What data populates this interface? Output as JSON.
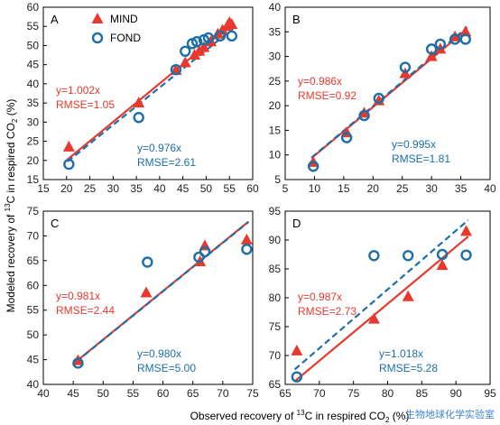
{
  "colors": {
    "mind": "#e8392f",
    "fond": "#1d6fa8"
  },
  "axes": {
    "xlabel_prefix": "Observed recovery of ",
    "xlabel_sup": "13",
    "xlabel_mid": "C in respired CO",
    "xlabel_sub": "2",
    "xlabel_suffix": " (%)",
    "ylabel_prefix": "Modeled recovery of ",
    "ylabel_sup": "13",
    "ylabel_mid": "C in respired CO",
    "ylabel_sub": "2",
    "ylabel_suffix": " (%)"
  },
  "legend": {
    "mind": "MIND",
    "fond": "FOND"
  },
  "watermark": "生物地球化学实验室",
  "chart_data": [
    {
      "type": "scatter",
      "panel": "A",
      "xlim": [
        15,
        60
      ],
      "ylim": [
        15,
        60
      ],
      "xticks": [
        15,
        20,
        25,
        30,
        35,
        40,
        45,
        50,
        55,
        60
      ],
      "yticks": [
        15,
        20,
        25,
        30,
        35,
        40,
        45,
        50,
        55,
        60
      ],
      "series": [
        {
          "name": "MIND",
          "marker": "triangle",
          "slope": 1.002,
          "stats": [
            "y=1.002x",
            "RMSE=1.05"
          ],
          "points": [
            [
              20.5,
              23.5
            ],
            [
              35.5,
              35.0
            ],
            [
              43.5,
              43.5
            ],
            [
              45.5,
              45.5
            ],
            [
              47.5,
              47.5
            ],
            [
              48.5,
              48.5
            ],
            [
              49.5,
              49.5
            ],
            [
              51.0,
              51.0
            ],
            [
              52.5,
              53.0
            ],
            [
              53.5,
              54.0
            ],
            [
              54.5,
              55.0
            ],
            [
              55.0,
              56.0
            ],
            [
              55.5,
              55.5
            ]
          ]
        },
        {
          "name": "FOND",
          "marker": "circle",
          "slope": 0.976,
          "stats": [
            "y=0.976x",
            "RMSE=2.61"
          ],
          "points": [
            [
              20.5,
              19.0
            ],
            [
              35.5,
              31.2
            ],
            [
              43.5,
              43.7
            ],
            [
              45.5,
              48.5
            ],
            [
              47.0,
              50.5
            ],
            [
              48.0,
              51.0
            ],
            [
              49.5,
              51.5
            ],
            [
              50.5,
              52.0
            ],
            [
              53.0,
              52.5
            ],
            [
              55.5,
              52.5
            ]
          ]
        }
      ]
    },
    {
      "type": "scatter",
      "panel": "B",
      "xlim": [
        5,
        40
      ],
      "ylim": [
        5,
        40
      ],
      "xticks": [
        5,
        10,
        15,
        20,
        25,
        30,
        35,
        40
      ],
      "yticks": [
        5,
        10,
        15,
        20,
        25,
        30,
        35,
        40
      ],
      "series": [
        {
          "name": "MIND",
          "marker": "triangle",
          "slope": 0.986,
          "stats": [
            "y=0.986x",
            "RMSE=0.92"
          ],
          "points": [
            [
              9.8,
              8.5
            ],
            [
              15.5,
              14.5
            ],
            [
              18.5,
              18.5
            ],
            [
              21.0,
              21.0
            ],
            [
              25.5,
              26.5
            ],
            [
              30.0,
              30.0
            ],
            [
              31.5,
              31.5
            ],
            [
              34.0,
              34.0
            ],
            [
              35.8,
              35.0
            ]
          ]
        },
        {
          "name": "FOND",
          "marker": "circle",
          "slope": 0.995,
          "stats": [
            "y=0.995x",
            "RMSE=1.81"
          ],
          "points": [
            [
              9.8,
              7.7
            ],
            [
              15.5,
              13.5
            ],
            [
              18.5,
              18.0
            ],
            [
              21.0,
              21.5
            ],
            [
              25.5,
              27.8
            ],
            [
              30.0,
              31.5
            ],
            [
              31.5,
              32.5
            ],
            [
              34.0,
              33.5
            ],
            [
              35.8,
              33.5
            ]
          ]
        }
      ]
    },
    {
      "type": "scatter",
      "panel": "C",
      "xlim": [
        40,
        75
      ],
      "ylim": [
        40,
        75
      ],
      "xticks": [
        40,
        45,
        50,
        55,
        60,
        65,
        70,
        75
      ],
      "yticks": [
        40,
        45,
        50,
        55,
        60,
        65,
        70,
        75
      ],
      "series": [
        {
          "name": "MIND",
          "marker": "triangle",
          "slope": 0.981,
          "stats": [
            "y=0.981x",
            "RMSE=2.44"
          ],
          "points": [
            [
              45.8,
              44.8
            ],
            [
              57.2,
              58.5
            ],
            [
              66.2,
              64.8
            ],
            [
              67.0,
              68.0
            ],
            [
              74.0,
              69.2
            ]
          ]
        },
        {
          "name": "FOND",
          "marker": "circle",
          "slope": 0.98,
          "stats": [
            "y=0.980x",
            "RMSE=5.00"
          ],
          "points": [
            [
              45.8,
              44.3
            ],
            [
              57.4,
              64.7
            ],
            [
              66.0,
              65.7
            ],
            [
              67.0,
              66.8
            ],
            [
              74.0,
              67.3
            ]
          ]
        }
      ]
    },
    {
      "type": "scatter",
      "panel": "D",
      "xlim": [
        65,
        95
      ],
      "ylim": [
        65,
        95
      ],
      "xticks": [
        65,
        70,
        75,
        80,
        85,
        90,
        95
      ],
      "yticks": [
        65,
        70,
        75,
        80,
        85,
        90,
        95
      ],
      "series": [
        {
          "name": "MIND",
          "marker": "triangle",
          "slope": 0.987,
          "stats": [
            "y=0.987x",
            "RMSE=2.73"
          ],
          "points": [
            [
              66.7,
              70.8
            ],
            [
              78.0,
              76.3
            ],
            [
              83.0,
              80.2
            ],
            [
              88.0,
              85.6
            ],
            [
              91.5,
              91.5
            ]
          ]
        },
        {
          "name": "FOND",
          "marker": "circle",
          "slope": 1.018,
          "stats": [
            "y=1.018x",
            "RMSE=5.28"
          ],
          "points": [
            [
              66.7,
              66.3
            ],
            [
              78.0,
              87.3
            ],
            [
              83.0,
              87.3
            ],
            [
              88.0,
              87.5
            ],
            [
              91.5,
              87.4
            ]
          ]
        }
      ]
    }
  ]
}
